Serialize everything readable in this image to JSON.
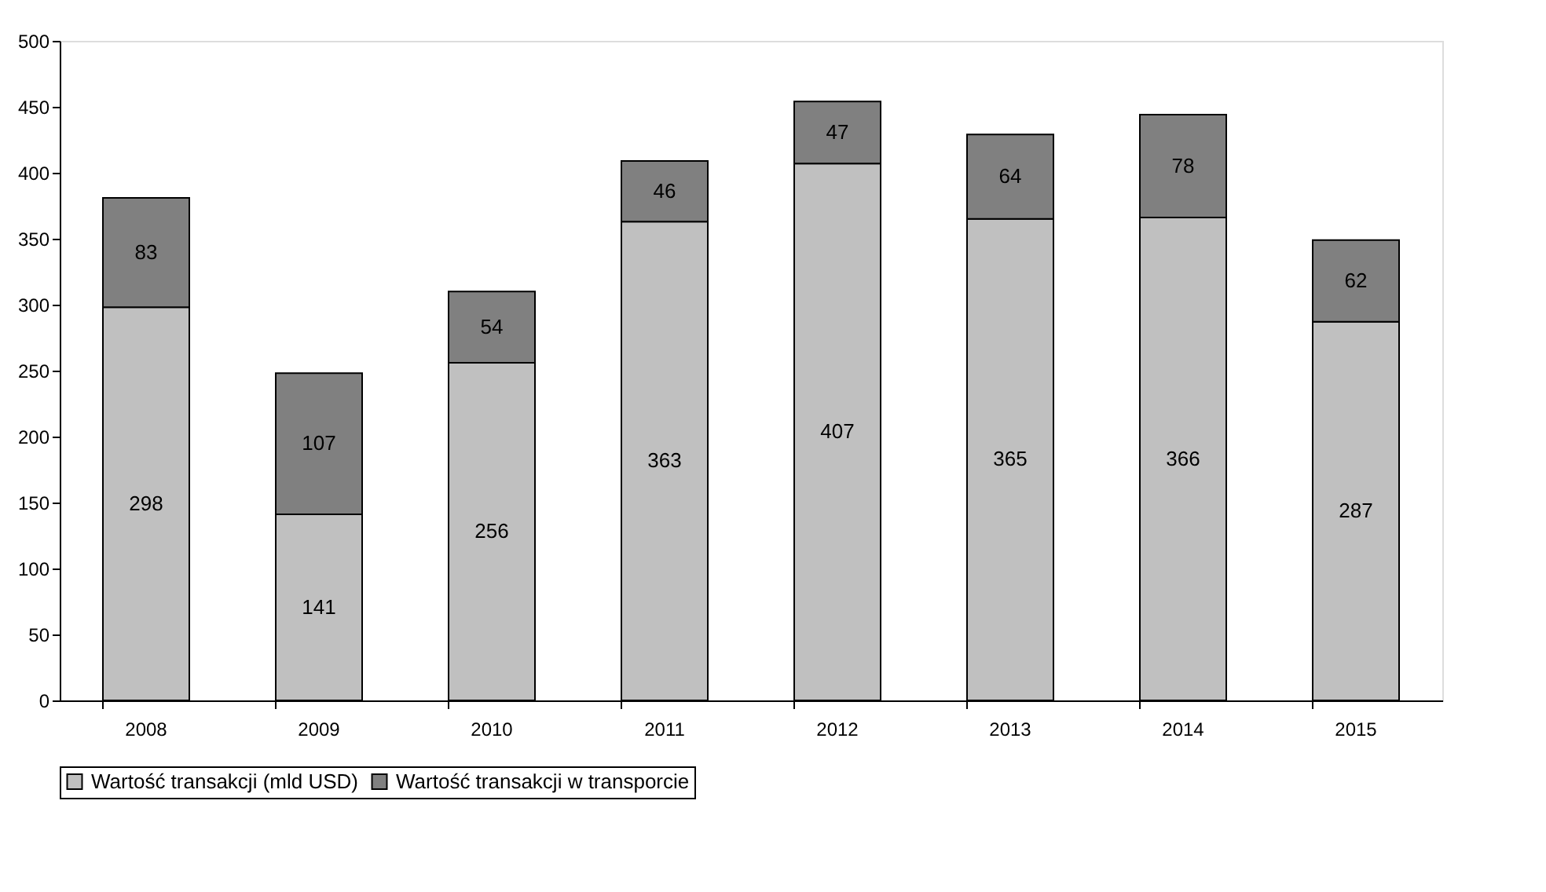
{
  "chart_data": {
    "type": "bar",
    "stacked": true,
    "categories": [
      "2008",
      "2009",
      "2010",
      "2011",
      "2012",
      "2013",
      "2014",
      "2015"
    ],
    "series": [
      {
        "name": "Wartość transakcji (mld USD)",
        "color": "#c0c0c0",
        "values": [
          298,
          141,
          256,
          363,
          407,
          365,
          366,
          287
        ]
      },
      {
        "name": "Wartość transakcji w transporcie",
        "color": "#808080",
        "values": [
          83,
          107,
          54,
          46,
          47,
          64,
          78,
          62
        ]
      }
    ],
    "ylim": [
      0,
      500
    ],
    "yticks": [
      0,
      50,
      100,
      150,
      200,
      250,
      300,
      350,
      400,
      450,
      500
    ],
    "data_labels": true,
    "legend": "bottom",
    "grid": false
  }
}
